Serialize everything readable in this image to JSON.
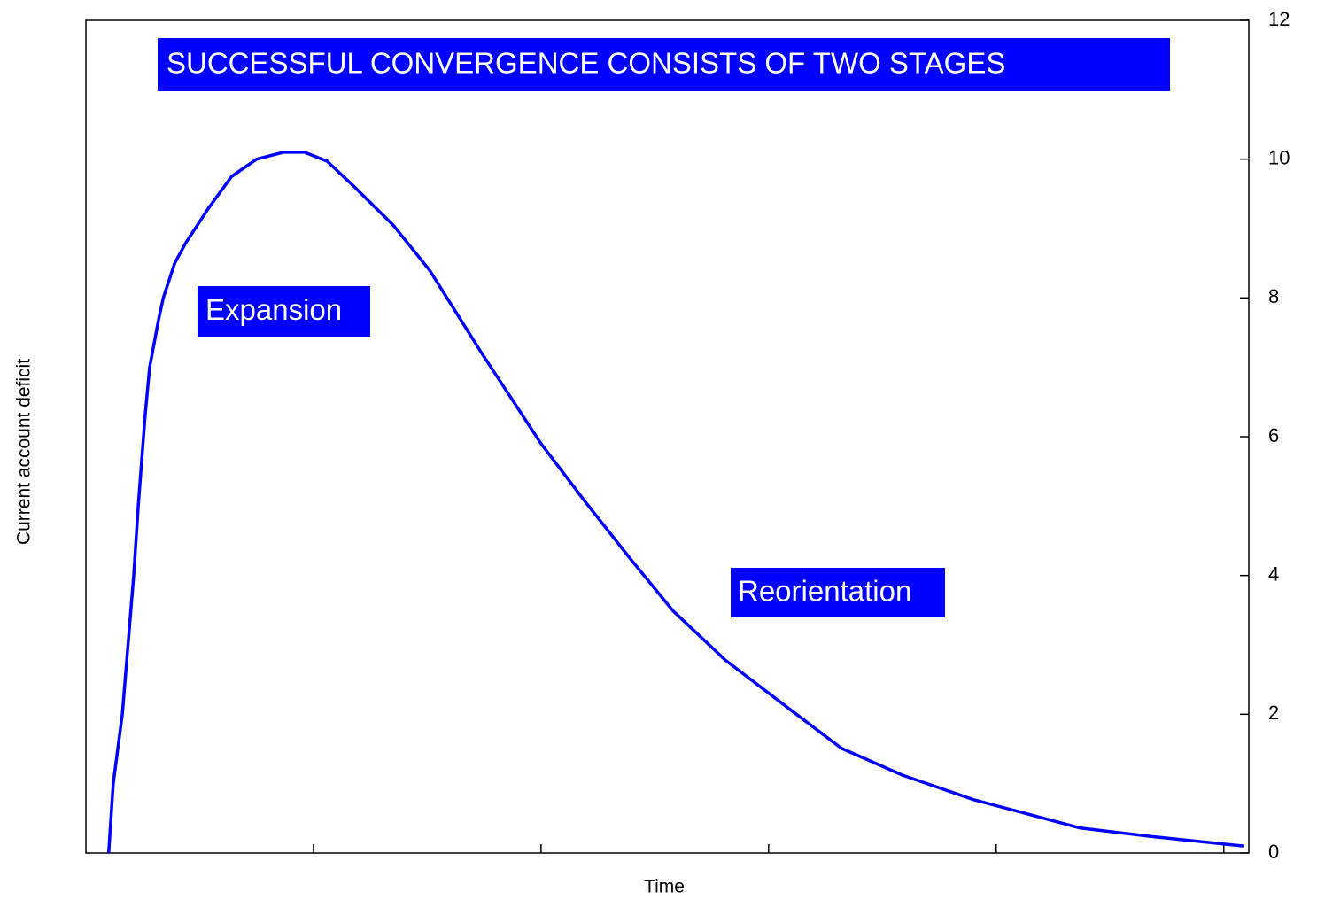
{
  "chart_data": {
    "type": "line",
    "x_label": "Time",
    "y_label": "Current account deficit",
    "annotations": [
      "SUCCESSFUL CONVERGENCE CONSISTS OF TWO STAGES",
      "Expansion",
      "Reorientation"
    ],
    "annotation_color": "#0000ff",
    "x": [
      0.1,
      0.12,
      0.16,
      0.21,
      0.23,
      0.26,
      0.28,
      0.32,
      0.34,
      0.39,
      0.44,
      0.54,
      0.64,
      0.75,
      0.87,
      0.96,
      1.06,
      1.18,
      1.35,
      1.51,
      1.74,
      2.0,
      2.19,
      2.39,
      2.58,
      2.81,
      3.09,
      3.32,
      3.59,
      3.9,
      4.37,
      4.68,
      5.09
    ],
    "series": [
      {
        "name": "Current account deficit",
        "color": "#0000ff",
        "values": [
          0,
          1.0,
          2.0,
          4.0,
          5.0,
          6.3,
          7.0,
          7.7,
          8.0,
          8.5,
          8.8,
          9.3,
          9.75,
          10.0,
          10.1,
          10.1,
          9.97,
          9.6,
          9.05,
          8.4,
          7.2,
          5.9,
          5.08,
          4.25,
          3.49,
          2.78,
          2.08,
          1.51,
          1.12,
          0.77,
          0.36,
          0.24,
          0.1
        ]
      }
    ],
    "xlim": [
      0,
      5.11
    ],
    "xticks": [
      1,
      2,
      3,
      4,
      5
    ],
    "ylim": [
      0,
      12
    ],
    "yticks": [
      0,
      2,
      4,
      6,
      8,
      10,
      12
    ],
    "y_axis_side": "right"
  }
}
